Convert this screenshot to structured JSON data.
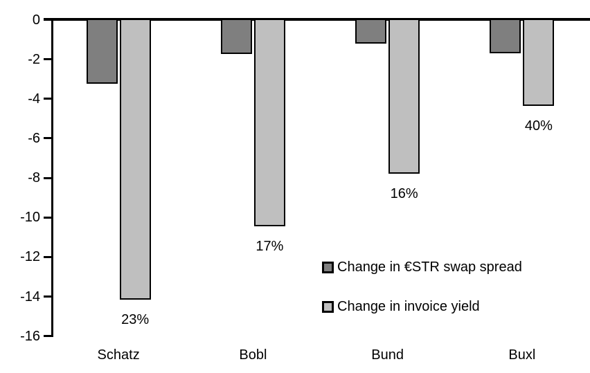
{
  "chart_data": {
    "type": "bar",
    "title": "",
    "xlabel": "",
    "ylabel": "",
    "categories": [
      "Schatz",
      "Bobl",
      "Bund",
      "Buxl"
    ],
    "series": [
      {
        "name": "Change in €STR swap spread",
        "key": "swap-spread",
        "color": "#7F7F7F",
        "values": [
          -3.3,
          -1.8,
          -1.25,
          -1.75
        ]
      },
      {
        "name": "Change in invoice yield",
        "key": "invoice-yield",
        "color": "#BFBFBF",
        "values": [
          -14.2,
          -10.5,
          -7.85,
          -4.4
        ],
        "data_labels": [
          "23%",
          "17%",
          "16%",
          "40%"
        ]
      }
    ],
    "yticks": [
      0,
      -2,
      -4,
      -6,
      -8,
      -10,
      -12,
      -14,
      -16
    ],
    "ytick_labels": [
      "0",
      "-2",
      "-4",
      "-6",
      "-8",
      "-10",
      "-12",
      "-14",
      "-16"
    ],
    "ylim": [
      -16,
      0
    ],
    "grid": false,
    "bar_orientation": "vertical",
    "bar_border_color": "#000000",
    "legend_position": "inside-center-right",
    "background_color": "#FFFFFF"
  }
}
